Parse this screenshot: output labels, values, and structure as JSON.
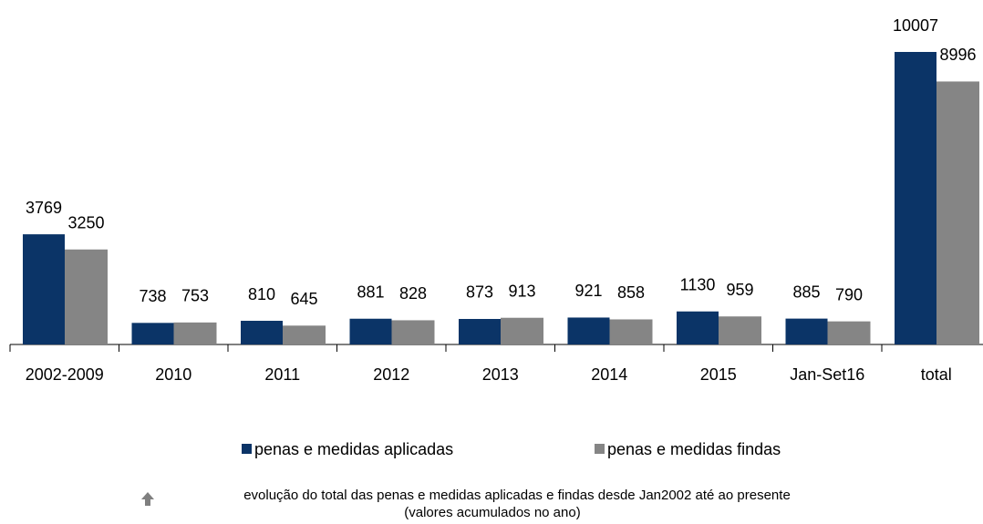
{
  "chart_data": {
    "type": "bar",
    "categories": [
      "2002-2009",
      "2010",
      "2011",
      "2012",
      "2013",
      "2014",
      "2015",
      "Jan-Set16",
      "total"
    ],
    "series": [
      {
        "name": "penas e medidas aplicadas",
        "color": "#0b3467",
        "values": [
          3769,
          738,
          810,
          881,
          873,
          921,
          1130,
          885,
          10007
        ]
      },
      {
        "name": "penas e medidas findas",
        "color": "#858585",
        "values": [
          3250,
          753,
          645,
          828,
          913,
          858,
          959,
          790,
          8996
        ]
      }
    ],
    "notes": [
      "evolução do total das penas e medidas aplicadas e findas desde Jan2002 até ao presente",
      "(valores acumulados no ano)"
    ]
  }
}
